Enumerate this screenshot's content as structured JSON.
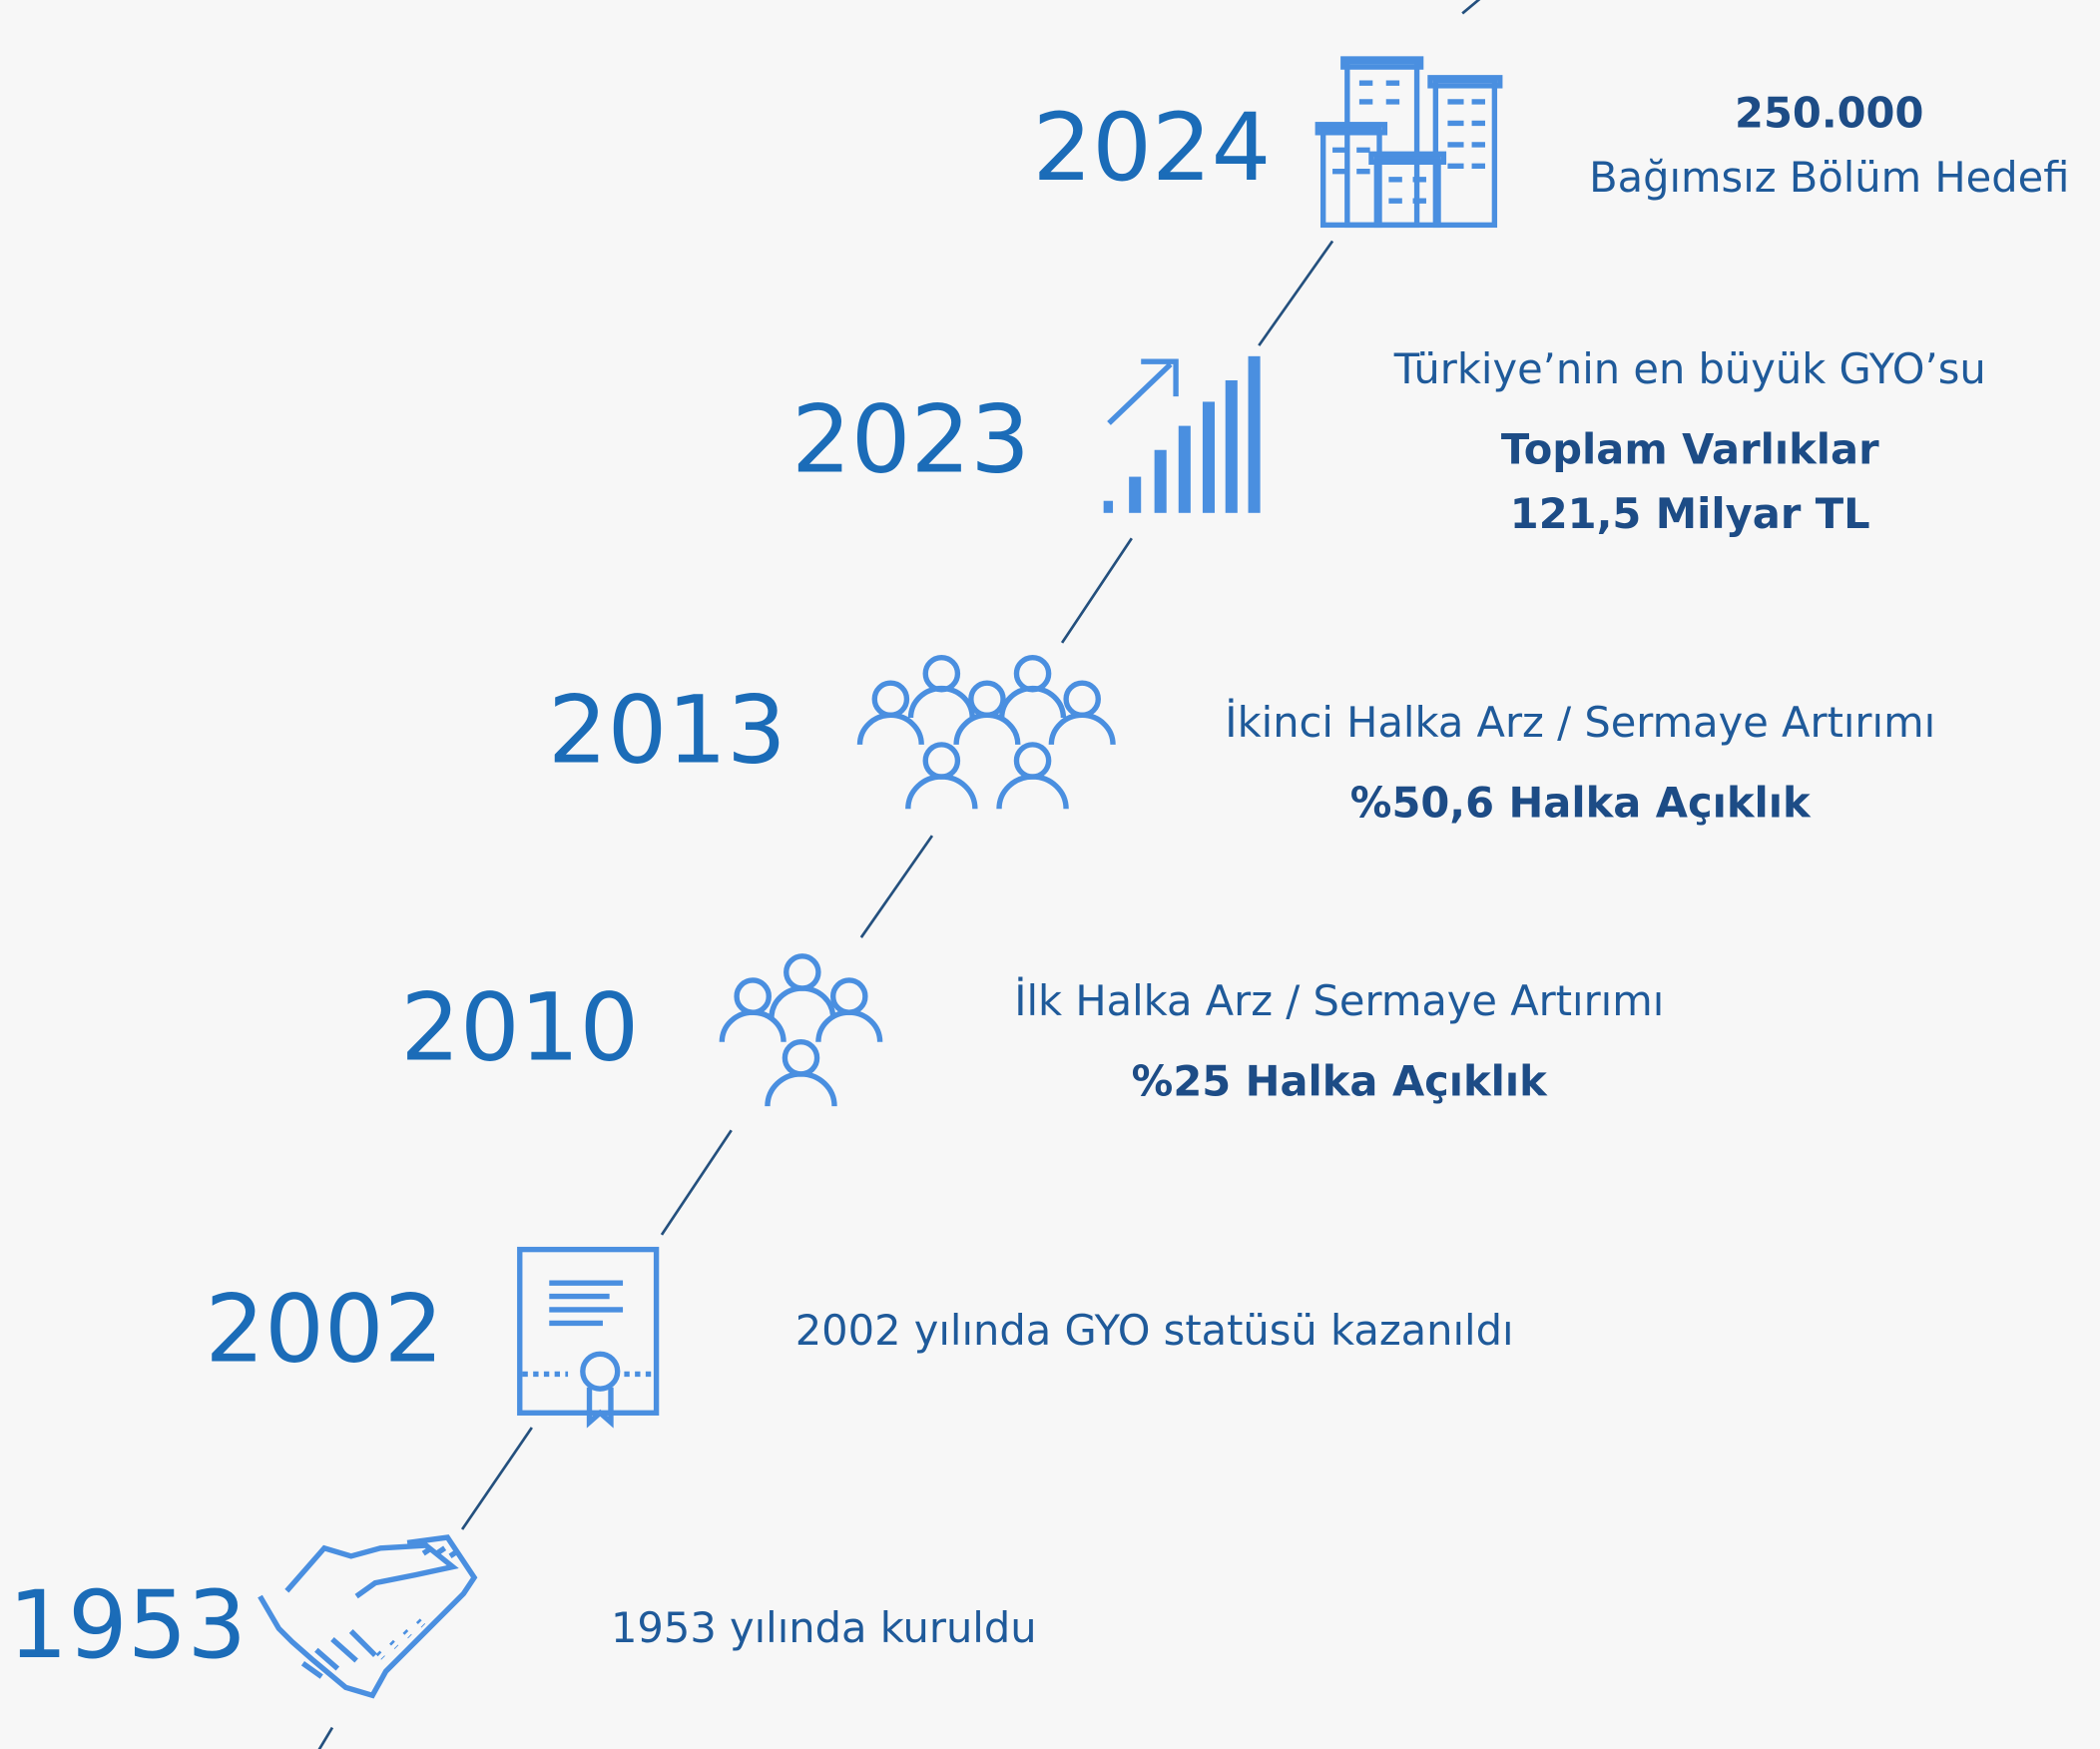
{
  "milestones": [
    {
      "year": "2024",
      "description": [],
      "emphasis": [
        "250.000"
      ],
      "after": [
        "Bağımsız Bölüm Hedefi"
      ]
    },
    {
      "year": "2023",
      "description": [
        "Türkiye’nin en büyük GYO’su"
      ],
      "emphasis": [
        "Toplam Varlıklar",
        "121,5 Milyar TL"
      ],
      "after": []
    },
    {
      "year": "2013",
      "description": [
        "İkinci Halka Arz / Sermaye Artırımı"
      ],
      "emphasis": [
        "%50,6 Halka Açıklık"
      ],
      "after": []
    },
    {
      "year": "2010",
      "description": [
        "İlk Halka Arz / Sermaye Artırımı"
      ],
      "emphasis": [
        "%25 Halka Açıklık"
      ],
      "after": []
    },
    {
      "year": "2002",
      "description": [
        "2002 yılında GYO statüsü kazanıldı"
      ],
      "emphasis": [],
      "after": []
    },
    {
      "year": "1953",
      "description": [
        "1953 yılında kuruldu"
      ],
      "emphasis": [],
      "after": []
    }
  ]
}
